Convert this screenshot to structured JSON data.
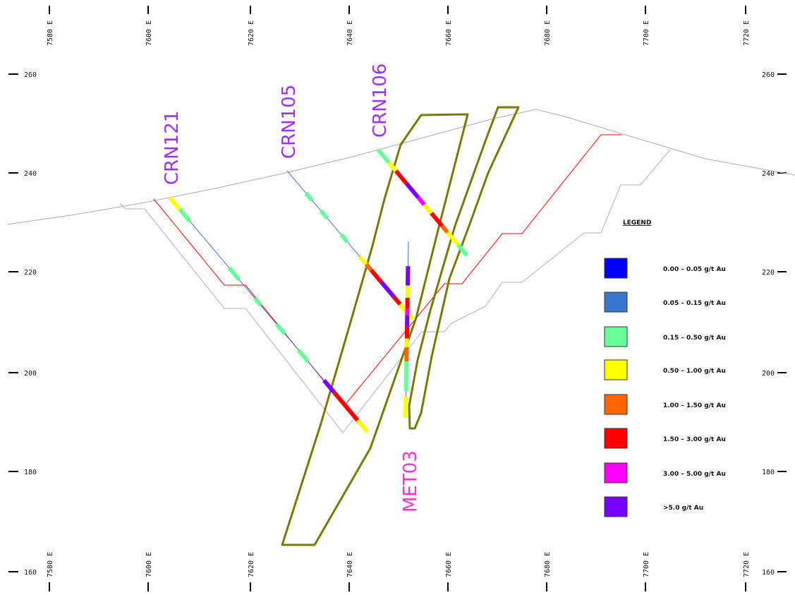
{
  "chart_data": {
    "type": "cross-section",
    "x_ticks": [
      "7580 E",
      "7600 E",
      "7620 E",
      "7640 E",
      "7660 E",
      "7680 E",
      "7700 E",
      "7720 E"
    ],
    "y_ticks": [
      "260",
      "240",
      "220",
      "200",
      "180",
      "160"
    ],
    "drillholes": [
      {
        "name": "CRN121",
        "color": "#9b30ff"
      },
      {
        "name": "CRN105",
        "color": "#9b30ff"
      },
      {
        "name": "CRN106",
        "color": "#9b30ff"
      },
      {
        "name": "MET03",
        "color": "#ff33cc"
      }
    ],
    "legend": {
      "title": "LEGEND",
      "items": [
        {
          "label": "0.00 – 0.05 g/t Au",
          "color": "#0000ff"
        },
        {
          "label": "0.05 – 0.15 g/t Au",
          "color": "#3a78d0"
        },
        {
          "label": "0.15 – 0.50 g/t Au",
          "color": "#66ff99"
        },
        {
          "label": "0.50 – 1.00 g/t Au",
          "color": "#ffff00"
        },
        {
          "label": "1.00 – 1.50 g/t Au",
          "color": "#ff6600"
        },
        {
          "label": "1.50 – 3.00 g/t Au",
          "color": "#ff0000"
        },
        {
          "label": "3.00 – 5.00 g/t Au",
          "color": "#ff00ff"
        },
        {
          "label": ">5.0 g/t Au",
          "color": "#7700ff"
        }
      ]
    },
    "colors": {
      "topography": "#aaaaaa",
      "pit_red": "#ff0000",
      "pit_grey": "#b0b0b0",
      "lodes": "#7a7a00"
    }
  }
}
